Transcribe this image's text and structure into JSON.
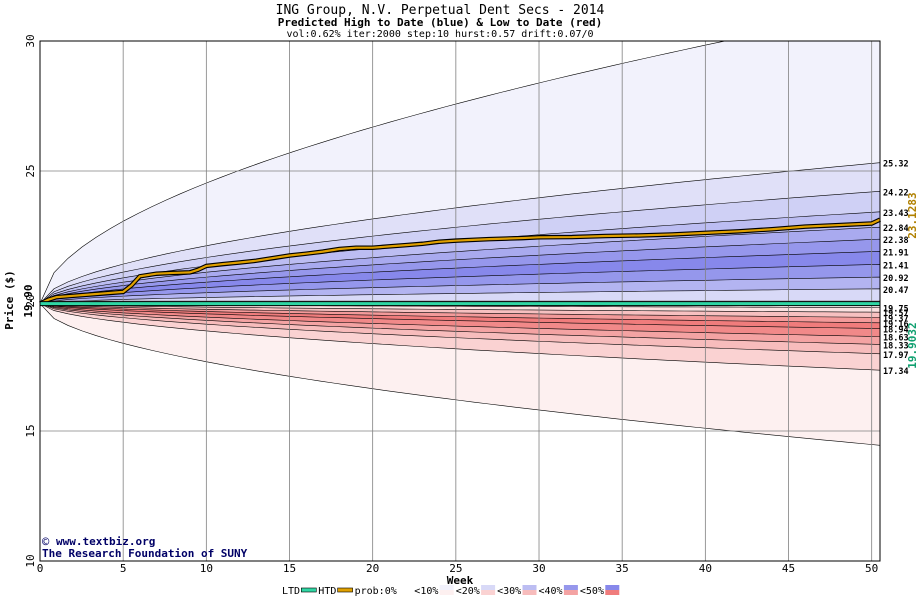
{
  "chart_data": {
    "type": "area",
    "title": "ING Group, N.V. Perpetual Dent Secs - 2014",
    "subtitle": "Predicted High to Date (blue) &  Low to Date (red)",
    "params": "vol:0.62% iter:2000 step:10 hurst:0.57 drift:0.07/0",
    "xlabel": "Week",
    "ylabel": "Price ($)",
    "xlim": [
      0,
      50.5
    ],
    "ylim": [
      10,
      30
    ],
    "x_ticks": [
      0,
      5,
      10,
      15,
      20,
      25,
      30,
      35,
      40,
      45,
      50
    ],
    "y_ticks": [
      10,
      15,
      20,
      25,
      30
    ],
    "grid": true,
    "start_price": 19.9,
    "start_price_label": "19.90",
    "watermark_lines": [
      "www.textbiz.org",
      "The Research Foundation of SUNY"
    ],
    "watermark_symbol": "©",
    "upper_bands": [
      {
        "label": "",
        "end": 31.2,
        "fill": "#f2f2fc"
      },
      {
        "label": "25.32",
        "end": 25.32,
        "fill": "#e0e0f8"
      },
      {
        "label": "24.22",
        "end": 24.22,
        "fill": "#cfd0f5"
      },
      {
        "label": "23.43",
        "end": 23.43,
        "fill": "#bcbdf2"
      },
      {
        "label": "22.84",
        "end": 22.84,
        "fill": "#a9aaef"
      },
      {
        "label": "22.38",
        "end": 22.38,
        "fill": "#9697ec"
      },
      {
        "label": "21.91",
        "end": 21.91,
        "fill": "#8788eb"
      },
      {
        "label": "21.41",
        "end": 21.41,
        "fill": "#9597ec"
      },
      {
        "label": "20.92",
        "end": 20.92,
        "fill": "#b3b4f1"
      },
      {
        "label": "20.47",
        "end": 20.47,
        "fill": "#d8d9f7"
      }
    ],
    "lower_bands": [
      {
        "label": "",
        "end": 14.45,
        "fill": "#fdf0f0"
      },
      {
        "label": "17.34",
        "end": 17.34,
        "fill": "#fad2d2"
      },
      {
        "label": "17.97",
        "end": 17.97,
        "fill": "#f7bcbc"
      },
      {
        "label": "18.33",
        "end": 18.33,
        "fill": "#f4a3a3"
      },
      {
        "label": "18.63",
        "end": 18.63,
        "fill": "#f18989"
      },
      {
        "label": "18.94",
        "end": 18.94,
        "fill": "#f07c7c"
      },
      {
        "label": "19.16",
        "end": 19.16,
        "fill": "#f39a9a"
      },
      {
        "label": "19.37",
        "end": 19.37,
        "fill": "#f7c0c0"
      },
      {
        "label": "19.57",
        "end": 19.57,
        "fill": "#fbe0e0"
      },
      {
        "label": "19.75",
        "end": 19.75,
        "fill": "#fdf2f2"
      }
    ],
    "series": [
      {
        "name": "HTD",
        "color": "#e0a000",
        "end_label": "23.1283",
        "x": [
          0,
          0.5,
          1,
          2,
          3,
          4,
          5,
          5.5,
          6,
          7,
          8,
          9,
          9.5,
          10,
          11,
          12,
          13,
          14,
          15,
          16,
          17,
          18,
          19,
          20,
          21,
          22,
          23,
          24,
          25,
          26,
          27,
          28,
          29,
          30,
          32,
          34,
          36,
          38,
          40,
          42,
          44,
          46,
          48,
          50,
          50.5
        ],
        "y": [
          19.9,
          20.05,
          20.15,
          20.2,
          20.25,
          20.3,
          20.35,
          20.6,
          20.95,
          21.05,
          21.08,
          21.1,
          21.2,
          21.35,
          21.42,
          21.48,
          21.55,
          21.65,
          21.75,
          21.82,
          21.9,
          22.0,
          22.05,
          22.05,
          22.1,
          22.15,
          22.2,
          22.28,
          22.32,
          22.35,
          22.38,
          22.4,
          22.42,
          22.45,
          22.46,
          22.5,
          22.52,
          22.56,
          22.62,
          22.68,
          22.76,
          22.86,
          22.92,
          22.98,
          23.13
        ]
      },
      {
        "name": "LTD",
        "color": "#30d6a4",
        "end_label": "19.9032",
        "x": [
          0,
          50.5
        ],
        "y": [
          19.9,
          19.9
        ]
      }
    ],
    "legend": {
      "placement": "bottom",
      "items": [
        {
          "label": "LTD",
          "kind": "line",
          "color": "#30d6a4"
        },
        {
          "label": "HTD",
          "kind": "line",
          "color": "#e0a000"
        },
        {
          "label": "prob:0%",
          "kind": "swatch",
          "upper": "#ffffff",
          "lower": "#ffffff"
        },
        {
          "label": "<10%",
          "kind": "swatch",
          "upper": "#f2f2fc",
          "lower": "#fdf0f0"
        },
        {
          "label": "<20%",
          "kind": "swatch",
          "upper": "#d8d9f7",
          "lower": "#fad2d2"
        },
        {
          "label": "<30%",
          "kind": "swatch",
          "upper": "#bcbdf2",
          "lower": "#f7bcbc"
        },
        {
          "label": "<40%",
          "kind": "swatch",
          "upper": "#9697ec",
          "lower": "#f4a3a3"
        },
        {
          "label": "<50%",
          "kind": "swatch",
          "upper": "#8788eb",
          "lower": "#f07c7c"
        }
      ]
    }
  }
}
